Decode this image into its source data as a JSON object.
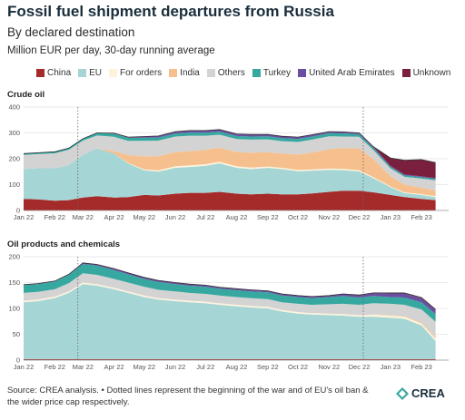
{
  "header": {
    "title": "Fossil fuel shipment departures from Russia",
    "subtitle": "By declared destination",
    "units": "Million EUR per day, 30-day running average"
  },
  "legend": [
    {
      "label": "China",
      "color": "#a52a2a",
      "icon": "square-swatch"
    },
    {
      "label": "EU",
      "color": "#a6d5d5",
      "icon": "square-swatch"
    },
    {
      "label": "For orders",
      "color": "#fdf3dc",
      "icon": "square-swatch"
    },
    {
      "label": "India",
      "color": "#f6c08e",
      "icon": "square-swatch"
    },
    {
      "label": "Others",
      "color": "#d3d3d3",
      "icon": "square-swatch"
    },
    {
      "label": "Turkey",
      "color": "#36a8a0",
      "icon": "square-swatch"
    },
    {
      "label": "United Arab Emirates",
      "color": "#6a4fa0",
      "icon": "square-swatch"
    },
    {
      "label": "Unknown",
      "color": "#7a1f3d",
      "icon": "square-swatch"
    }
  ],
  "footer": {
    "source": "Source: CREA analysis. • Dotted lines represent the beginning of the war and of EU's oil ban & the wider price cap respectively.",
    "logo_text": "CREA"
  },
  "chart_data": [
    {
      "type": "area",
      "stacked": true,
      "title": "Crude oil",
      "x_ticks": [
        "Jan 22",
        "Feb 22",
        "Mar 22",
        "Apr 22",
        "May 22",
        "Jun 22",
        "Jul 22",
        "Aug 22",
        "Sep 22",
        "Oct 22",
        "Nov 22",
        "Dec 22",
        "Jan 23",
        "Feb 23"
      ],
      "y_ticks": [
        0,
        100,
        200,
        300,
        400
      ],
      "ylim": [
        0,
        400
      ],
      "grid": true,
      "vlines": [
        "Feb 24 2022",
        "Dec 5 2022"
      ],
      "x": [
        "2022-01-01",
        "2022-01-15",
        "2022-02-01",
        "2022-02-15",
        "2022-03-01",
        "2022-03-15",
        "2022-04-01",
        "2022-04-15",
        "2022-05-01",
        "2022-05-15",
        "2022-06-01",
        "2022-06-15",
        "2022-07-01",
        "2022-07-15",
        "2022-08-01",
        "2022-08-15",
        "2022-09-01",
        "2022-09-15",
        "2022-10-01",
        "2022-10-15",
        "2022-11-01",
        "2022-11-15",
        "2022-12-01",
        "2022-12-15",
        "2023-01-01",
        "2023-01-15",
        "2023-02-01",
        "2023-02-15"
      ],
      "series": [
        {
          "name": "China",
          "values": [
            45,
            43,
            38,
            40,
            50,
            55,
            50,
            52,
            60,
            58,
            65,
            68,
            68,
            72,
            65,
            62,
            65,
            62,
            62,
            66,
            72,
            76,
            76,
            70,
            60,
            52,
            45,
            40
          ]
        },
        {
          "name": "EU",
          "values": [
            115,
            120,
            125,
            135,
            165,
            185,
            170,
            130,
            95,
            92,
            100,
            100,
            105,
            110,
            100,
            98,
            100,
            98,
            90,
            88,
            85,
            80,
            75,
            55,
            30,
            15,
            15,
            12
          ]
        },
        {
          "name": "For orders",
          "values": [
            0,
            0,
            0,
            0,
            0,
            0,
            0,
            2,
            4,
            5,
            6,
            6,
            6,
            6,
            6,
            6,
            5,
            5,
            5,
            5,
            5,
            5,
            4,
            4,
            3,
            3,
            3,
            3
          ]
        },
        {
          "name": "India",
          "values": [
            0,
            0,
            0,
            0,
            0,
            0,
            10,
            30,
            50,
            55,
            55,
            55,
            55,
            55,
            55,
            58,
            55,
            55,
            60,
            65,
            75,
            80,
            85,
            70,
            40,
            30,
            25,
            22
          ]
        },
        {
          "name": "Others",
          "values": [
            55,
            55,
            58,
            60,
            55,
            50,
            55,
            55,
            60,
            60,
            60,
            60,
            55,
            50,
            50,
            50,
            50,
            48,
            48,
            50,
            50,
            45,
            45,
            35,
            30,
            30,
            35,
            40
          ]
        },
        {
          "name": "Turkey",
          "values": [
            5,
            5,
            6,
            6,
            8,
            10,
            12,
            12,
            12,
            12,
            12,
            12,
            12,
            12,
            12,
            12,
            12,
            12,
            12,
            12,
            12,
            12,
            10,
            8,
            6,
            6,
            6,
            5
          ]
        },
        {
          "name": "United Arab Emirates",
          "values": [
            0,
            0,
            0,
            0,
            0,
            0,
            2,
            3,
            5,
            6,
            7,
            8,
            8,
            8,
            8,
            8,
            7,
            7,
            7,
            7,
            6,
            6,
            5,
            5,
            4,
            3,
            3,
            3
          ]
        },
        {
          "name": "Unknown",
          "values": [
            0,
            0,
            0,
            0,
            0,
            0,
            0,
            0,
            0,
            0,
            0,
            0,
            0,
            0,
            0,
            0,
            0,
            0,
            0,
            0,
            0,
            0,
            0,
            0,
            30,
            55,
            65,
            60
          ]
        }
      ]
    },
    {
      "type": "area",
      "stacked": true,
      "title": "Oil products and chemicals",
      "x_ticks": [
        "Jan 22",
        "Feb 22",
        "Mar 22",
        "Apr 22",
        "May 22",
        "Jun 22",
        "Jul 22",
        "Aug 22",
        "Sep 22",
        "Oct 22",
        "Nov 22",
        "Dec 22",
        "Jan 23",
        "Feb 23"
      ],
      "y_ticks": [
        0,
        50,
        100,
        150,
        200
      ],
      "ylim": [
        0,
        200
      ],
      "grid": true,
      "vlines": [
        "Feb 24 2022",
        "Dec 5 2022"
      ],
      "x": [
        "2022-01-01",
        "2022-01-15",
        "2022-02-01",
        "2022-02-15",
        "2022-03-01",
        "2022-03-15",
        "2022-04-01",
        "2022-04-15",
        "2022-05-01",
        "2022-05-15",
        "2022-06-01",
        "2022-06-15",
        "2022-07-01",
        "2022-07-15",
        "2022-08-01",
        "2022-08-15",
        "2022-09-01",
        "2022-09-15",
        "2022-10-01",
        "2022-10-15",
        "2022-11-01",
        "2022-11-15",
        "2022-12-01",
        "2022-12-15",
        "2023-01-01",
        "2023-01-15",
        "2023-02-01",
        "2023-02-15"
      ],
      "series": [
        {
          "name": "China",
          "values": [
            2,
            2,
            2,
            2,
            2,
            2,
            2,
            2,
            2,
            2,
            2,
            2,
            2,
            2,
            2,
            2,
            2,
            2,
            2,
            2,
            2,
            2,
            2,
            2,
            2,
            2,
            2,
            2
          ]
        },
        {
          "name": "EU",
          "values": [
            110,
            112,
            118,
            128,
            145,
            142,
            135,
            128,
            120,
            115,
            112,
            110,
            108,
            105,
            102,
            100,
            98,
            92,
            88,
            86,
            85,
            84,
            82,
            82,
            80,
            78,
            65,
            35
          ]
        },
        {
          "name": "For orders",
          "values": [
            3,
            3,
            3,
            3,
            3,
            3,
            3,
            3,
            3,
            3,
            3,
            3,
            3,
            3,
            3,
            3,
            3,
            3,
            3,
            3,
            3,
            3,
            3,
            4,
            4,
            4,
            4,
            5
          ]
        },
        {
          "name": "India",
          "values": [
            0,
            0,
            0,
            0,
            0,
            0,
            0,
            0,
            0,
            0,
            0,
            0,
            0,
            0,
            0,
            0,
            0,
            0,
            0,
            0,
            0,
            0,
            0,
            0,
            1,
            1,
            2,
            2
          ]
        },
        {
          "name": "Others",
          "values": [
            15,
            15,
            14,
            16,
            18,
            18,
            17,
            17,
            17,
            16,
            16,
            15,
            15,
            15,
            15,
            15,
            15,
            15,
            16,
            16,
            18,
            20,
            20,
            22,
            22,
            22,
            25,
            30
          ]
        },
        {
          "name": "Turkey",
          "values": [
            15,
            15,
            15,
            16,
            18,
            18,
            17,
            16,
            15,
            15,
            14,
            14,
            14,
            13,
            13,
            13,
            13,
            13,
            13,
            13,
            14,
            15,
            14,
            14,
            13,
            14,
            14,
            15
          ]
        },
        {
          "name": "United Arab Emirates",
          "values": [
            1,
            1,
            1,
            1,
            2,
            2,
            3,
            3,
            3,
            3,
            3,
            3,
            3,
            3,
            3,
            3,
            3,
            3,
            3,
            3,
            3,
            4,
            5,
            6,
            7,
            8,
            8,
            8
          ]
        },
        {
          "name": "Unknown",
          "values": [
            0,
            0,
            0,
            0,
            0,
            0,
            0,
            0,
            0,
            0,
            0,
            0,
            0,
            0,
            0,
            0,
            0,
            0,
            0,
            0,
            0,
            0,
            0,
            0,
            1,
            1,
            1,
            1
          ]
        }
      ]
    }
  ]
}
